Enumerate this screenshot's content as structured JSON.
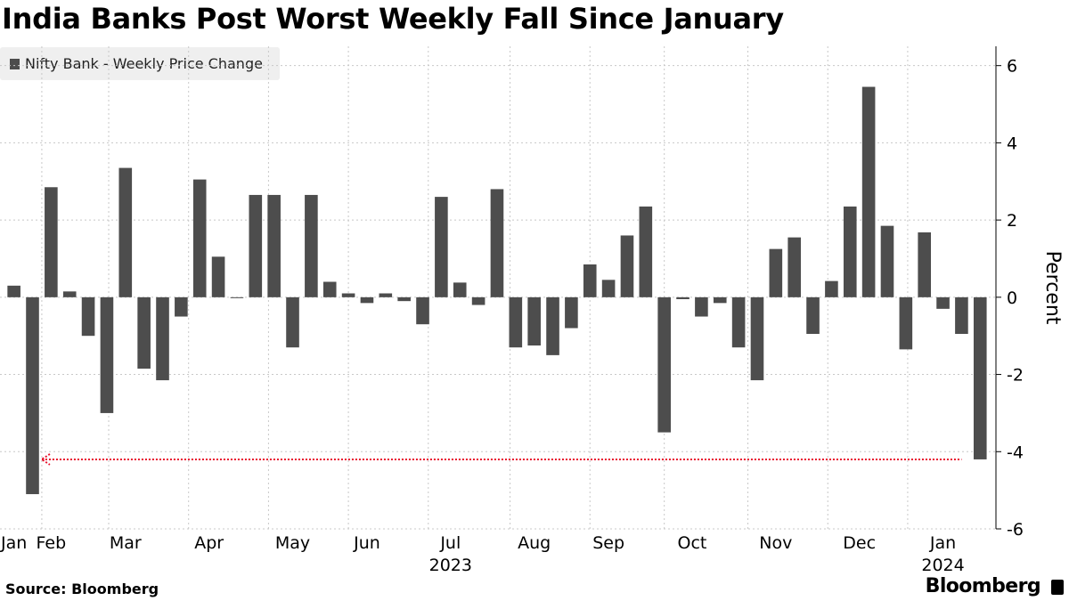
{
  "title": "India Banks Post Worst Weekly Fall Since January",
  "source": "Source: Bloomberg",
  "brand": "Bloomberg",
  "colors": {
    "bar": "#4d4d4d",
    "annotation": "#e8112d",
    "grid": "#c8c8c8",
    "legend_bg": "#efefef"
  },
  "chart_data": {
    "type": "bar",
    "title": "India Banks Post Worst Weekly Fall Since January",
    "series": [
      {
        "name": "Nifty Bank - Weekly Price Change",
        "values": [
          0.3,
          -5.1,
          2.85,
          0.15,
          -1.0,
          -3.0,
          3.35,
          -1.85,
          -2.15,
          -0.5,
          3.05,
          1.05,
          -0.02,
          2.65,
          2.65,
          -1.3,
          2.65,
          0.4,
          0.1,
          -0.15,
          0.1,
          -0.1,
          -0.7,
          2.6,
          0.38,
          -0.2,
          2.8,
          -1.3,
          -1.25,
          -1.5,
          -0.8,
          0.85,
          0.45,
          1.6,
          2.35,
          -3.5,
          -0.05,
          -0.5,
          -0.15,
          -1.3,
          -2.15,
          1.25,
          1.55,
          -0.95,
          0.42,
          2.35,
          5.45,
          1.85,
          -1.35,
          1.68,
          -0.3,
          -0.95,
          -4.2
        ]
      }
    ],
    "xlabel": "",
    "ylabel": "Percent",
    "ylim": [
      -6,
      6.5
    ],
    "yticks": [
      -6,
      -4,
      -2,
      0,
      2,
      4,
      6
    ],
    "month_labels": [
      {
        "label": "Jan",
        "week": 1
      },
      {
        "label": "Feb",
        "week": 3
      },
      {
        "label": "Mar",
        "week": 7
      },
      {
        "label": "Apr",
        "week": 11.5
      },
      {
        "label": "May",
        "week": 16
      },
      {
        "label": "Jun",
        "week": 20
      },
      {
        "label": "Jul",
        "week": 24.5
      },
      {
        "label": "Aug",
        "week": 29
      },
      {
        "label": "Sep",
        "week": 33
      },
      {
        "label": "Oct",
        "week": 37.5
      },
      {
        "label": "Nov",
        "week": 42
      },
      {
        "label": "Dec",
        "week": 46.5
      },
      {
        "label": "Jan",
        "week": 51
      }
    ],
    "month_gridlines": [
      2,
      5.6,
      9.9,
      14.2,
      18.5,
      22.8,
      27.2,
      31.5,
      35.5,
      40,
      44.3,
      48.6
    ],
    "year_labels": [
      {
        "label": "2023",
        "week": 24.5
      },
      {
        "label": "2024",
        "week": 51
      }
    ],
    "annotation": {
      "type": "reference-line",
      "value": -4.2,
      "from_week": 2.5,
      "to_week": 52,
      "meaning": "level of latest weekly fall"
    },
    "legend": "top-left",
    "grid": true
  }
}
